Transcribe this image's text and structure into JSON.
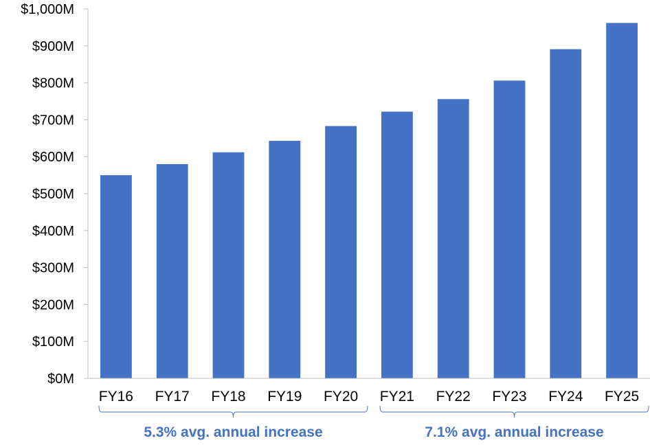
{
  "chart_data": {
    "type": "bar",
    "title": "",
    "xlabel": "",
    "ylabel": "",
    "categories": [
      "FY16",
      "FY17",
      "FY18",
      "FY19",
      "FY20",
      "FY21",
      "FY22",
      "FY23",
      "FY24",
      "FY25"
    ],
    "values": [
      550,
      580,
      612,
      643,
      683,
      722,
      756,
      806,
      891,
      962
    ],
    "value_unit": "$M",
    "ylim": [
      0,
      1000
    ],
    "yticks": [
      0,
      100,
      200,
      300,
      400,
      500,
      600,
      700,
      800,
      900,
      1000
    ],
    "ytick_labels": [
      "$0M",
      "$100M",
      "$200M",
      "$300M",
      "$400M",
      "$500M",
      "$600M",
      "$700M",
      "$800M",
      "$900M",
      "$1,000M"
    ],
    "grid": false,
    "legend": "none",
    "bar_color": "#4472C4",
    "annotations": [
      {
        "text": "5.3% avg. annual increase",
        "from": "FY16",
        "to": "FY20",
        "color": "#4472C4"
      },
      {
        "text": "7.1% avg. annual increase",
        "from": "FY21",
        "to": "FY25",
        "color": "#4472C4"
      }
    ]
  }
}
